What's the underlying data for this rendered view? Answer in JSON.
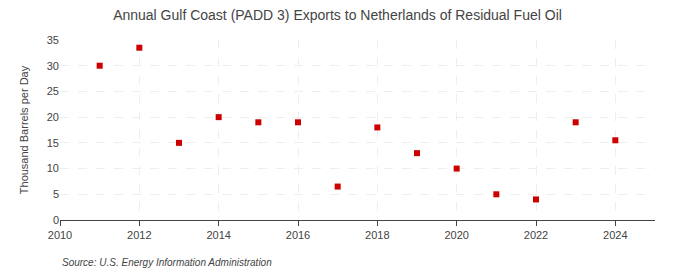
{
  "chart_data": {
    "type": "scatter",
    "title": "Annual Gulf Coast (PADD 3) Exports to Netherlands of Residual Fuel Oil",
    "ylabel": "Thousand Barrels per Day",
    "annotations": [
      "Source: U.S. Energy Information Administration"
    ],
    "x": [
      2011,
      2012,
      2013,
      2014,
      2015,
      2016,
      2017,
      2018,
      2019,
      2020,
      2021,
      2022,
      2023,
      2024
    ],
    "values": [
      30.0,
      33.5,
      15.0,
      20.0,
      19.0,
      19.0,
      6.5,
      18.0,
      13.0,
      10.0,
      5.0,
      4.0,
      19.0,
      15.5
    ],
    "color": "#cc0000",
    "marker": "square",
    "xlim": [
      2010,
      2025
    ],
    "xticks": [
      2010,
      2012,
      2014,
      2016,
      2018,
      2020,
      2022,
      2024
    ],
    "ylim": [
      0,
      35
    ],
    "yticks": [
      0,
      5,
      10,
      15,
      20,
      25,
      30,
      35
    ],
    "grid": true
  }
}
